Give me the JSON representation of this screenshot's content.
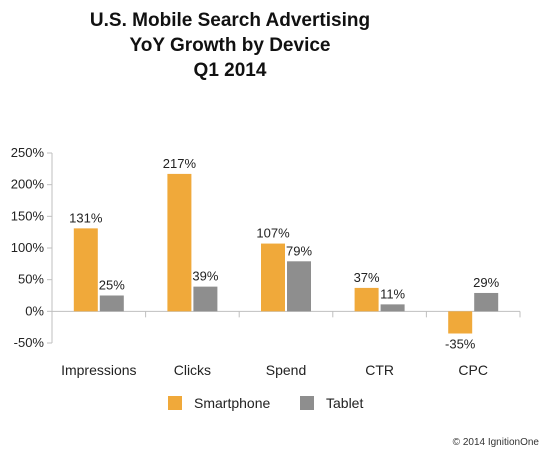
{
  "chart_data": {
    "type": "bar",
    "title_lines": [
      "U.S. Mobile Search Advertising",
      "YoY Growth by Device",
      "Q1 2014"
    ],
    "categories": [
      "Impressions",
      "Clicks",
      "Spend",
      "CTR",
      "CPC"
    ],
    "series": [
      {
        "name": "Smartphone",
        "values": [
          131,
          217,
          107,
          37,
          -35
        ],
        "labels": [
          "131%",
          "217%",
          "107%",
          "37%",
          "-35%"
        ],
        "color": "#f0a93a"
      },
      {
        "name": "Tablet",
        "values": [
          25,
          39,
          79,
          11,
          29
        ],
        "labels": [
          "25%",
          "39%",
          "79%",
          "11%",
          "29%"
        ],
        "color": "#8e8e8e"
      }
    ],
    "ylim": [
      -50,
      250
    ],
    "yticks": [
      250,
      200,
      150,
      100,
      50,
      0,
      -50
    ],
    "ytick_labels": [
      "250%",
      "200%",
      "150%",
      "100%",
      "50%",
      "0%",
      "-50%"
    ],
    "legend_position": "bottom",
    "grid": false
  },
  "footer": {
    "copyright": "© 2014 IgnitionOne"
  }
}
